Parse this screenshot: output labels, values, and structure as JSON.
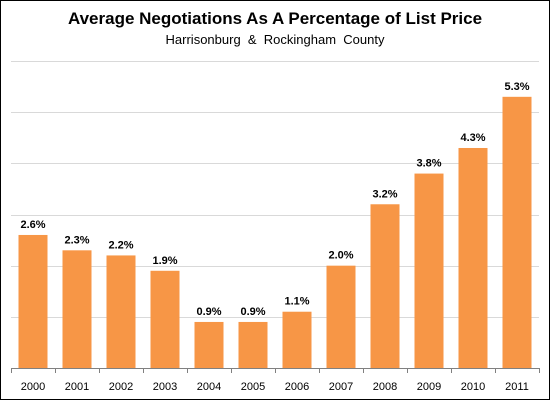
{
  "chart_data": {
    "type": "bar",
    "title": "Average Negotiations As A Percentage of List Price",
    "subtitle": "Harrisonburg  &  Rockingham  County",
    "categories": [
      "2000",
      "2001",
      "2002",
      "2003",
      "2004",
      "2005",
      "2006",
      "2007",
      "2008",
      "2009",
      "2010",
      "2011"
    ],
    "values": [
      2.6,
      2.3,
      2.2,
      1.9,
      0.9,
      0.9,
      1.1,
      2.0,
      3.2,
      3.8,
      4.3,
      5.3
    ],
    "data_labels": [
      "2.6%",
      "2.3%",
      "2.2%",
      "1.9%",
      "0.9%",
      "0.9%",
      "1.1%",
      "2.0%",
      "3.2%",
      "3.8%",
      "4.3%",
      "5.3%"
    ],
    "xlabel": "",
    "ylabel": "",
    "ylim": [
      0,
      6
    ],
    "grid": true,
    "legend": "none",
    "bar_color": "#F79646"
  }
}
